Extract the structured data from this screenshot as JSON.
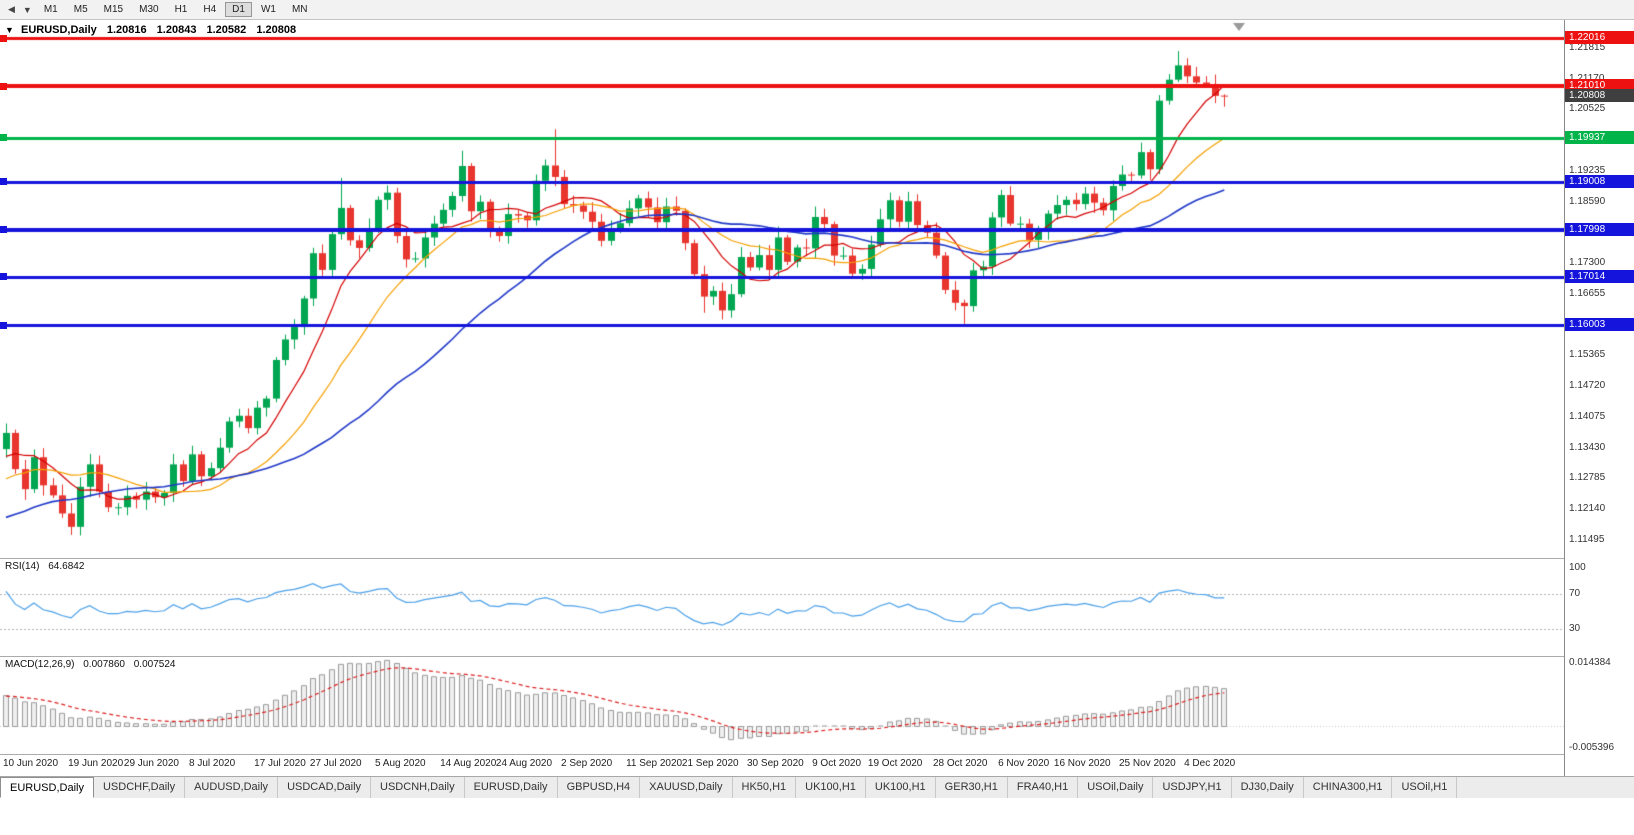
{
  "glyphs": {
    "back": "◀",
    "dropdown": "▼",
    "info_marker": "▼"
  },
  "toolbar": {
    "timeframes": [
      {
        "label": "M1",
        "active": false
      },
      {
        "label": "M5",
        "active": false
      },
      {
        "label": "M15",
        "active": false
      },
      {
        "label": "M30",
        "active": false
      },
      {
        "label": "H1",
        "active": false
      },
      {
        "label": "H4",
        "active": false
      },
      {
        "label": "D1",
        "active": true
      },
      {
        "label": "W1",
        "active": false
      },
      {
        "label": "MN",
        "active": false
      }
    ]
  },
  "chart_data": {
    "type": "candlestick",
    "title": "EURUSD,Daily",
    "ohlc_display": {
      "open": "1.20816",
      "high": "1.20843",
      "low": "1.20582",
      "close": "1.20808"
    },
    "price_axis": {
      "min": 1.11116,
      "max": 1.22402,
      "ticks": [
        {
          "value": 1.21815,
          "label": "1.21815"
        },
        {
          "value": 1.2117,
          "label": "1.21170"
        },
        {
          "value": 1.20525,
          "label": "1.20525"
        },
        {
          "value": 1.1988,
          "label": "1.19880"
        },
        {
          "value": 1.19235,
          "label": "1.19235"
        },
        {
          "value": 1.1859,
          "label": "1.18590"
        },
        {
          "value": 1.17945,
          "label": "1.17945"
        },
        {
          "value": 1.173,
          "label": "1.17300"
        },
        {
          "value": 1.16655,
          "label": "1.16655"
        },
        {
          "value": 1.1601,
          "label": "1.16010"
        },
        {
          "value": 1.15365,
          "label": "1.15365"
        },
        {
          "value": 1.1472,
          "label": "1.14720"
        },
        {
          "value": 1.14075,
          "label": "1.14075"
        },
        {
          "value": 1.1343,
          "label": "1.13430"
        },
        {
          "value": 1.12785,
          "label": "1.12785"
        },
        {
          "value": 1.1214,
          "label": "1.12140"
        },
        {
          "value": 1.11495,
          "label": "1.11495"
        }
      ]
    },
    "x_axis": {
      "labels": [
        {
          "i": 0,
          "label": "10 Jun 2020"
        },
        {
          "i": 7,
          "label": "19 Jun 2020"
        },
        {
          "i": 13,
          "label": "29 Jun 2020"
        },
        {
          "i": 20,
          "label": "8 Jul 2020"
        },
        {
          "i": 27,
          "label": "17 Jul 2020"
        },
        {
          "i": 33,
          "label": "27 Jul 2020"
        },
        {
          "i": 40,
          "label": "5 Aug 2020"
        },
        {
          "i": 47,
          "label": "14 Aug 2020"
        },
        {
          "i": 53,
          "label": "24 Aug 2020"
        },
        {
          "i": 60,
          "label": "2 Sep 2020"
        },
        {
          "i": 67,
          "label": "11 Sep 2020"
        },
        {
          "i": 73,
          "label": "21 Sep 2020"
        },
        {
          "i": 80,
          "label": "30 Sep 2020"
        },
        {
          "i": 87,
          "label": "9 Oct 2020"
        },
        {
          "i": 93,
          "label": "19 Oct 2020"
        },
        {
          "i": 100,
          "label": "28 Oct 2020"
        },
        {
          "i": 107,
          "label": "6 Nov 2020"
        },
        {
          "i": 113,
          "label": "16 Nov 2020"
        },
        {
          "i": 120,
          "label": "25 Nov 2020"
        },
        {
          "i": 127,
          "label": "4 Dec 2020"
        }
      ]
    },
    "candles": {
      "up_color": "#00a651",
      "down_color": "#e8352e",
      "first_open": 1.134,
      "closes": [
        1.1374,
        1.1298,
        1.1256,
        1.1323,
        1.1264,
        1.1243,
        1.1205,
        1.1177,
        1.1261,
        1.1308,
        1.1251,
        1.1218,
        1.1218,
        1.1242,
        1.1234,
        1.1251,
        1.1239,
        1.1248,
        1.1308,
        1.1273,
        1.1329,
        1.1283,
        1.13,
        1.1343,
        1.1398,
        1.141,
        1.1384,
        1.1427,
        1.1446,
        1.1527,
        1.157,
        1.1596,
        1.1656,
        1.1751,
        1.1716,
        1.1791,
        1.1846,
        1.1778,
        1.1762,
        1.1803,
        1.1863,
        1.1878,
        1.1787,
        1.1738,
        1.174,
        1.1784,
        1.1813,
        1.1842,
        1.1871,
        1.1934,
        1.1839,
        1.1859,
        1.1796,
        1.1787,
        1.1833,
        1.183,
        1.182,
        1.1903,
        1.1935,
        1.1911,
        1.1854,
        1.1851,
        1.1838,
        1.1817,
        1.1777,
        1.1802,
        1.1814,
        1.1845,
        1.1866,
        1.1847,
        1.1816,
        1.1849,
        1.184,
        1.1772,
        1.1707,
        1.166,
        1.1672,
        1.1631,
        1.1665,
        1.1743,
        1.1721,
        1.1747,
        1.1716,
        1.1784,
        1.1733,
        1.1763,
        1.1761,
        1.1827,
        1.1812,
        1.1746,
        1.1746,
        1.1708,
        1.1718,
        1.1769,
        1.1822,
        1.1862,
        1.1817,
        1.186,
        1.181,
        1.1794,
        1.1746,
        1.1674,
        1.1647,
        1.164,
        1.1715,
        1.1723,
        1.1826,
        1.1873,
        1.1813,
        1.1813,
        1.1779,
        1.1802,
        1.1834,
        1.1852,
        1.1863,
        1.1854,
        1.1876,
        1.1857,
        1.1841,
        1.1892,
        1.1916,
        1.1914,
        1.1963,
        1.1927,
        1.2071,
        1.2115,
        1.2145,
        1.2122,
        1.2109,
        1.2106,
        1.2081,
        1.20808
      ],
      "wick_overrides": {
        "0": {
          "low": 1.1322
        },
        "7": {
          "low": 1.116
        },
        "36": {
          "high": 1.1909
        },
        "49": {
          "high": 1.1966
        },
        "59": {
          "high": 1.2011
        },
        "75": {
          "low": 1.1626
        },
        "77": {
          "low": 1.1612
        },
        "103": {
          "low": 1.1603
        },
        "126": {
          "high": 1.2175
        },
        "127": {
          "high": 1.216
        },
        "131": {
          "open": 1.20816,
          "high": 1.20843,
          "low": 1.20582
        }
      }
    },
    "prehistory": {
      "start_price": 1.045,
      "bars": 100,
      "wiggle": 0.004
    },
    "moving_averages": [
      {
        "name": "ma-fast",
        "period": 8,
        "color": "#d40000"
      },
      {
        "name": "ma-medium",
        "period": 17,
        "color": "#f5a000"
      },
      {
        "name": "ma-slow",
        "period": 35,
        "color": "#2038c8"
      }
    ],
    "horizontal_lines": [
      {
        "price": 1.22016,
        "label": "1.22016",
        "color": "#ee1111",
        "thickness": 3
      },
      {
        "price": 1.2101,
        "label": "1.21010",
        "color": "#ee1111",
        "thickness": 4
      },
      {
        "price": 1.19937,
        "label": "1.19937",
        "color": "#00b44a",
        "thickness": 3
      },
      {
        "price": 1.19008,
        "label": "1.19008",
        "color": "#1414dc",
        "thickness": 3
      },
      {
        "price": 1.17998,
        "label": "1.17998",
        "color": "#1414dc",
        "thickness": 4
      },
      {
        "price": 1.17014,
        "label": "1.17014",
        "color": "#1414dc",
        "thickness": 3
      },
      {
        "price": 1.16003,
        "label": "1.16003",
        "color": "#1414dc",
        "thickness": 3
      }
    ],
    "current_price": {
      "value": 1.20808,
      "label": "1.20808",
      "box_color": "#3f3f3f"
    },
    "rsi": {
      "title": "RSI(14)",
      "current": "64.6842",
      "period": 14,
      "color": "#4ba0e8",
      "range": [
        0,
        110
      ],
      "levels": [
        {
          "value": 100,
          "label": "100",
          "line": false
        },
        {
          "value": 70,
          "label": "70",
          "line": true
        },
        {
          "value": 30,
          "label": "30",
          "line": true
        }
      ]
    },
    "macd": {
      "title": "MACD(12,26,9)",
      "current_macd": "0.007860",
      "current_signal": "0.007524",
      "fast": 12,
      "slow": 26,
      "signal": 9,
      "range": [
        -0.006,
        0.015
      ],
      "axis_labels": [
        {
          "value": 0.014384,
          "label": "0.014384"
        },
        {
          "value": -0.005396,
          "label": "-0.005396"
        }
      ],
      "histogram_color": "#9a9a9a",
      "histogram_fill": "#efefef",
      "signal_color": "#dd2222"
    }
  },
  "bottom_tabs": {
    "tabs": [
      {
        "label": "EURUSD,Daily",
        "active": true
      },
      {
        "label": "USDCHF,Daily",
        "active": false
      },
      {
        "label": "AUDUSD,Daily",
        "active": false
      },
      {
        "label": "USDCAD,Daily",
        "active": false
      },
      {
        "label": "USDCNH,Daily",
        "active": false
      },
      {
        "label": "EURUSD,Daily",
        "active": false
      },
      {
        "label": "GBPUSD,H4",
        "active": false
      },
      {
        "label": "XAUUSD,Daily",
        "active": false
      },
      {
        "label": "HK50,H1",
        "active": false
      },
      {
        "label": "UK100,H1",
        "active": false
      },
      {
        "label": "UK100,H1",
        "active": false
      },
      {
        "label": "GER30,H1",
        "active": false
      },
      {
        "label": "FRA40,H1",
        "active": false
      },
      {
        "label": "USOil,Daily",
        "active": false
      },
      {
        "label": "USDJPY,H1",
        "active": false
      },
      {
        "label": "DJ30,Daily",
        "active": false
      },
      {
        "label": "CHINA300,H1",
        "active": false
      },
      {
        "label": "USOil,H1",
        "active": false
      }
    ]
  }
}
